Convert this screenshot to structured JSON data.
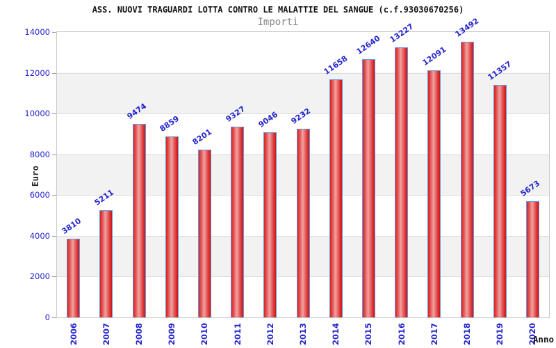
{
  "chart_data": {
    "type": "bar",
    "title": "ASS. NUOVI TRAGUARDI LOTTA CONTRO LE MALATTIE DEL SANGUE (c.f.93030670256)",
    "subtitle": "Importi",
    "xlabel": "Anno",
    "ylabel": "Euro",
    "categories": [
      "2006",
      "2007",
      "2008",
      "2009",
      "2010",
      "2011",
      "2012",
      "2013",
      "2014",
      "2015",
      "2016",
      "2017",
      "2018",
      "2019",
      "2020"
    ],
    "values": [
      3810,
      5211,
      9474,
      8859,
      8201,
      9327,
      9046,
      9232,
      11658,
      12640,
      13227,
      12091,
      13492,
      11357,
      5673
    ],
    "ylim": [
      0,
      14000
    ],
    "yticks": [
      0,
      2000,
      4000,
      6000,
      8000,
      10000,
      12000,
      14000
    ],
    "grid": "alternating horizontal bands with gridlines every 2000",
    "legend_position": "none",
    "colors": {
      "bar_fill_edge": "#d82424",
      "bar_fill_center": "#efa2a2",
      "bar_border": "#6699dd",
      "tick_label": "#2323cd",
      "value_label": "#2323cd",
      "title_text": "#151515",
      "subtitle_text": "#878787",
      "band_gray": "#f2f2f2",
      "band_white": "#ffffff",
      "plot_border": "#c9c9c9",
      "gridline": "#dcdcdc"
    }
  }
}
